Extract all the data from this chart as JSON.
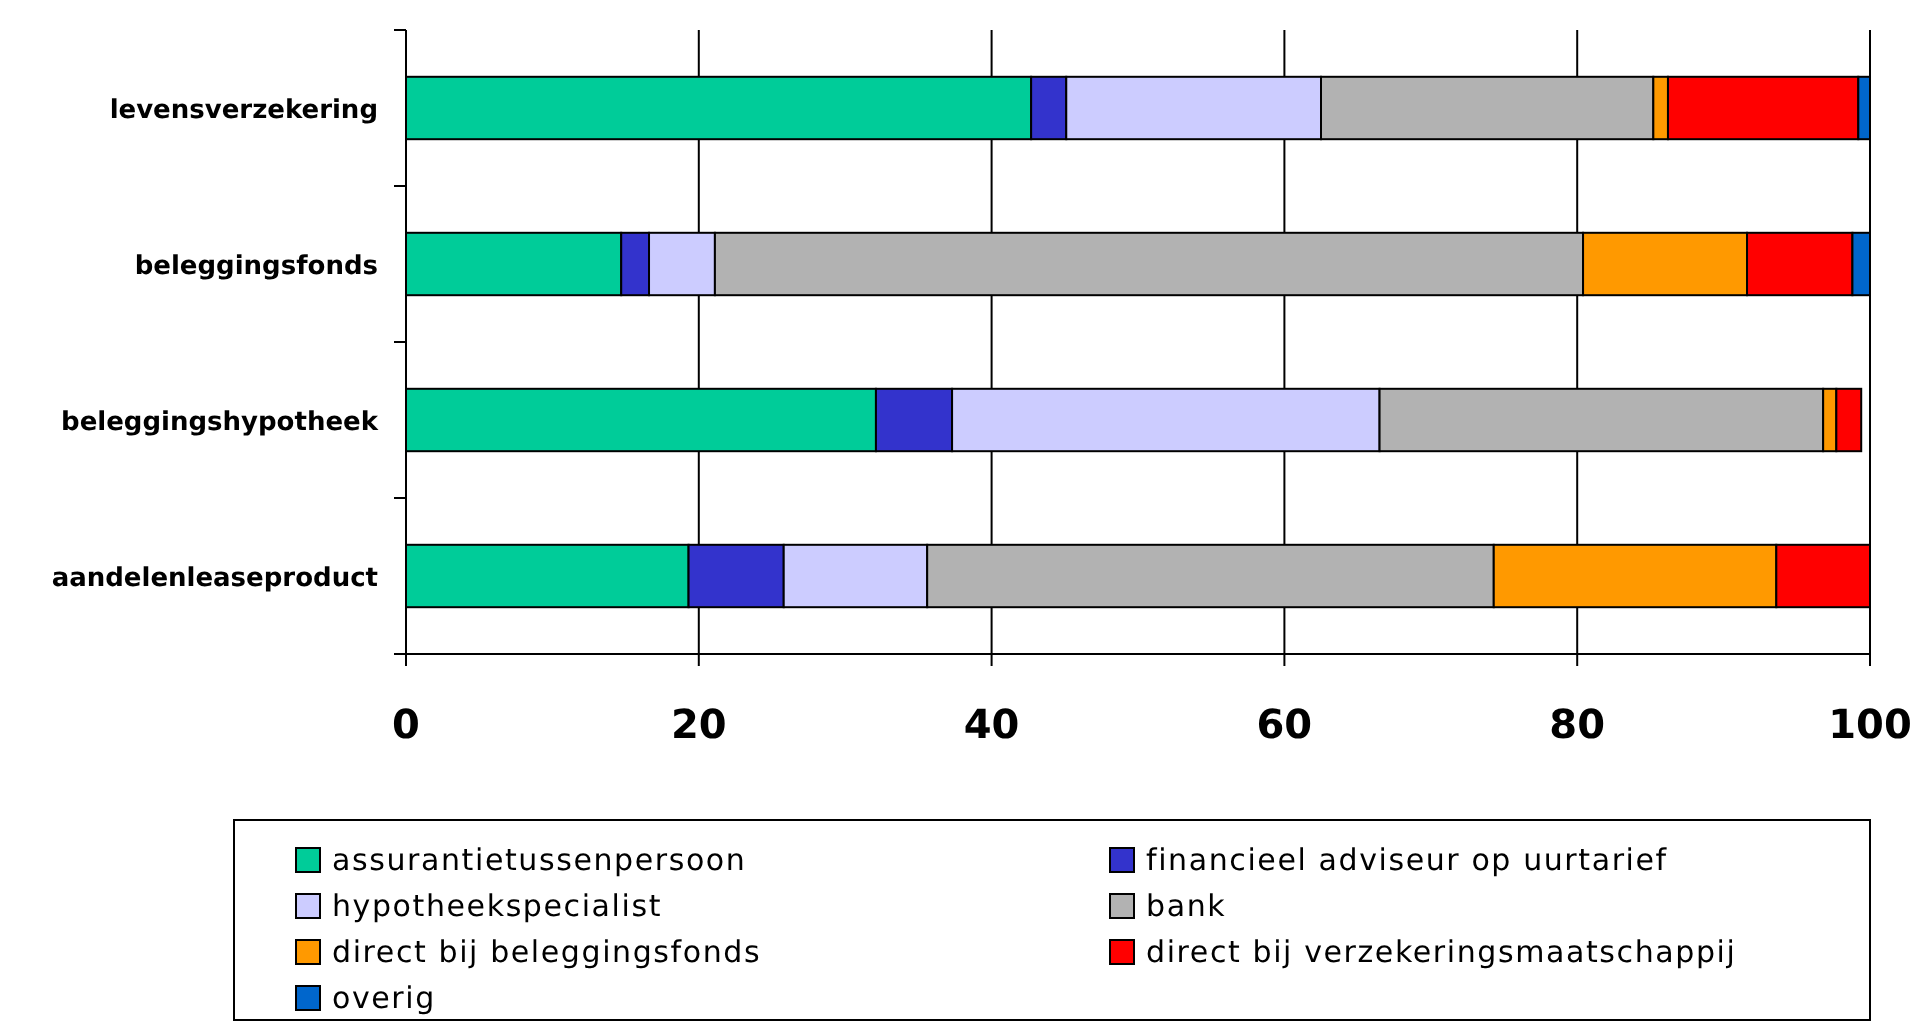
{
  "chart_data": {
    "type": "bar",
    "orientation": "horizontal",
    "stacked": true,
    "categories": [
      "levensverzekering",
      "beleggingsfonds",
      "beleggingshypotheek",
      "aandelenleaseproduct"
    ],
    "series": [
      {
        "name": "assurantietussenpersoon",
        "color": "#00cc99",
        "values": [
          42.7,
          14.7,
          32.1,
          19.3
        ]
      },
      {
        "name": "financieel adviseur op uurtarief",
        "color": "#3333cc",
        "values": [
          2.4,
          1.9,
          5.2,
          6.5
        ]
      },
      {
        "name": "hypotheekspecialist",
        "color": "#ccccff",
        "values": [
          17.4,
          4.5,
          29.2,
          9.8
        ]
      },
      {
        "name": "bank",
        "color": "#b2b2b2",
        "values": [
          22.7,
          59.3,
          30.3,
          38.7
        ]
      },
      {
        "name": "direct bij beleggingsfonds",
        "color": "#ff9900",
        "values": [
          1.0,
          11.2,
          0.9,
          19.3
        ]
      },
      {
        "name": "direct bij verzekeringsmaatschappij",
        "color": "#ff0000",
        "values": [
          13.0,
          7.2,
          1.7,
          6.4
        ]
      },
      {
        "name": "overig",
        "color": "#0066cc",
        "values": [
          0.8,
          1.2,
          null,
          null
        ]
      }
    ],
    "xlim": [
      0,
      100
    ],
    "xticks": [
      0,
      20,
      40,
      60,
      80,
      100
    ],
    "grid": "x",
    "legend": "bottom"
  }
}
